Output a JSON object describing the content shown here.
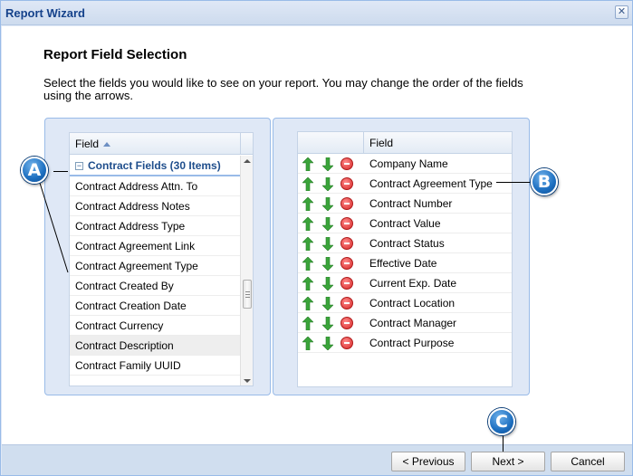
{
  "window": {
    "title": "Report Wizard",
    "close_glyph": "✕"
  },
  "page": {
    "heading": "Report Field Selection",
    "description": "Select the fields you would like to see on your report. You may change the order of the fields using the arrows."
  },
  "available": {
    "header": "Field",
    "group_label": "Contract Fields (30 Items)",
    "collapse_glyph": "−",
    "items": [
      "Contract Address Attn. To",
      "Contract Address Notes",
      "Contract Address Type",
      "Contract Agreement Link",
      "Contract Agreement Type",
      "Contract Created By",
      "Contract Creation Date",
      "Contract Currency",
      "Contract Description",
      "Contract Family UUID"
    ],
    "highlighted_item": "Contract Description"
  },
  "selected": {
    "header": "Field",
    "items": [
      "Company Name",
      "Contract Agreement Type",
      "Contract Number",
      "Contract Value",
      "Contract Status",
      "Effective Date",
      "Current Exp. Date",
      "Contract Location",
      "Contract Manager",
      "Contract Purpose"
    ],
    "row_icons": [
      "arrow-up-icon",
      "arrow-down-icon",
      "remove-icon"
    ]
  },
  "footer": {
    "previous_label": "< Previous",
    "next_label": "Next >",
    "cancel_label": "Cancel"
  },
  "callouts": {
    "a": "A",
    "b": "B",
    "c": "C"
  },
  "colors": {
    "arrow_green": "#3aa43a",
    "remove_red": "#d62828",
    "callout_blue": "#1d6fc0",
    "group_text": "#1f4e8c",
    "title_text": "#15428b"
  }
}
